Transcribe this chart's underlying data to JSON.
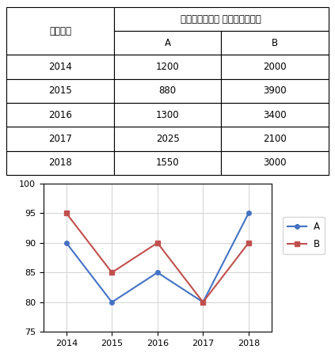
{
  "table_header_main": "निर्मित इकाइयाँ",
  "table_col1_header": "वर्ष",
  "table_col2_header": "A",
  "table_col3_header": "B",
  "years": [
    2014,
    2015,
    2016,
    2017,
    2018
  ],
  "values_A": [
    1200,
    880,
    1300,
    2025,
    1550
  ],
  "values_B": [
    2000,
    3900,
    3400,
    2100,
    3000
  ],
  "line_A": [
    90,
    80,
    85,
    80,
    95
  ],
  "line_B": [
    95,
    85,
    90,
    80,
    90
  ],
  "ylim": [
    75,
    100
  ],
  "yticks": [
    75,
    80,
    85,
    90,
    95,
    100
  ],
  "color_A": "#4472C4",
  "color_B": "#C0504D",
  "bg_color": "#FFFFFF"
}
